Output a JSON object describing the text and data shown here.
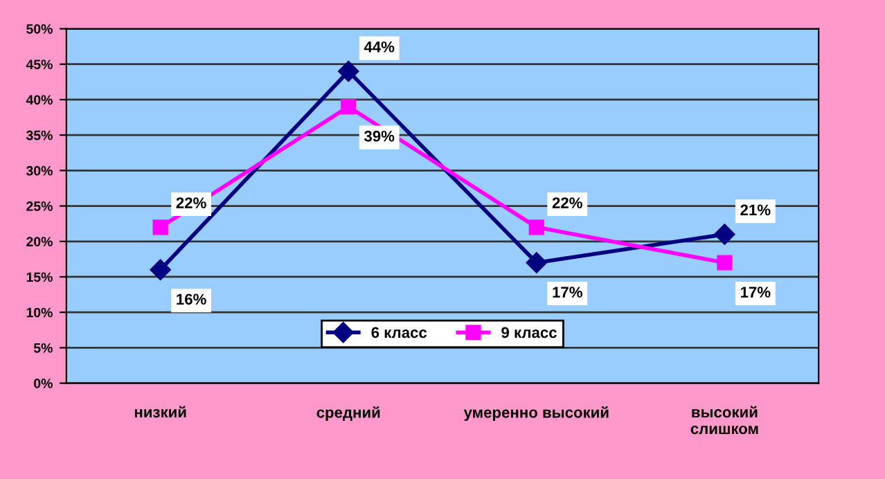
{
  "chart_data": {
    "type": "line",
    "categories": [
      "низкий",
      "средний",
      "умеренно высокий",
      "высокий\nслишком"
    ],
    "series": [
      {
        "name": "6 класс",
        "color": "#000080",
        "values": [
          16,
          44,
          17,
          21
        ],
        "value_labels": [
          "16%",
          "44%",
          "17%",
          "21%"
        ],
        "marker": "diamond"
      },
      {
        "name": "9 класс",
        "color": "#ff00ff",
        "values": [
          22,
          39,
          22,
          17
        ],
        "value_labels": [
          "22%",
          "39%",
          "22%",
          "17%"
        ],
        "marker": "square"
      }
    ],
    "ylim": [
      0,
      50
    ],
    "yticks": [
      {
        "value": 0,
        "label": "0%"
      },
      {
        "value": 5,
        "label": "5%"
      },
      {
        "value": 10,
        "label": "10%"
      },
      {
        "value": 15,
        "label": "15%"
      },
      {
        "value": 20,
        "label": "20%"
      },
      {
        "value": 25,
        "label": "25%"
      },
      {
        "value": 30,
        "label": "30%"
      },
      {
        "value": 35,
        "label": "35%"
      },
      {
        "value": 40,
        "label": "40%"
      },
      {
        "value": 45,
        "label": "45%"
      },
      {
        "value": 50,
        "label": "50%"
      }
    ],
    "grid": "y",
    "legend": "bottom",
    "line_style": "solid"
  }
}
